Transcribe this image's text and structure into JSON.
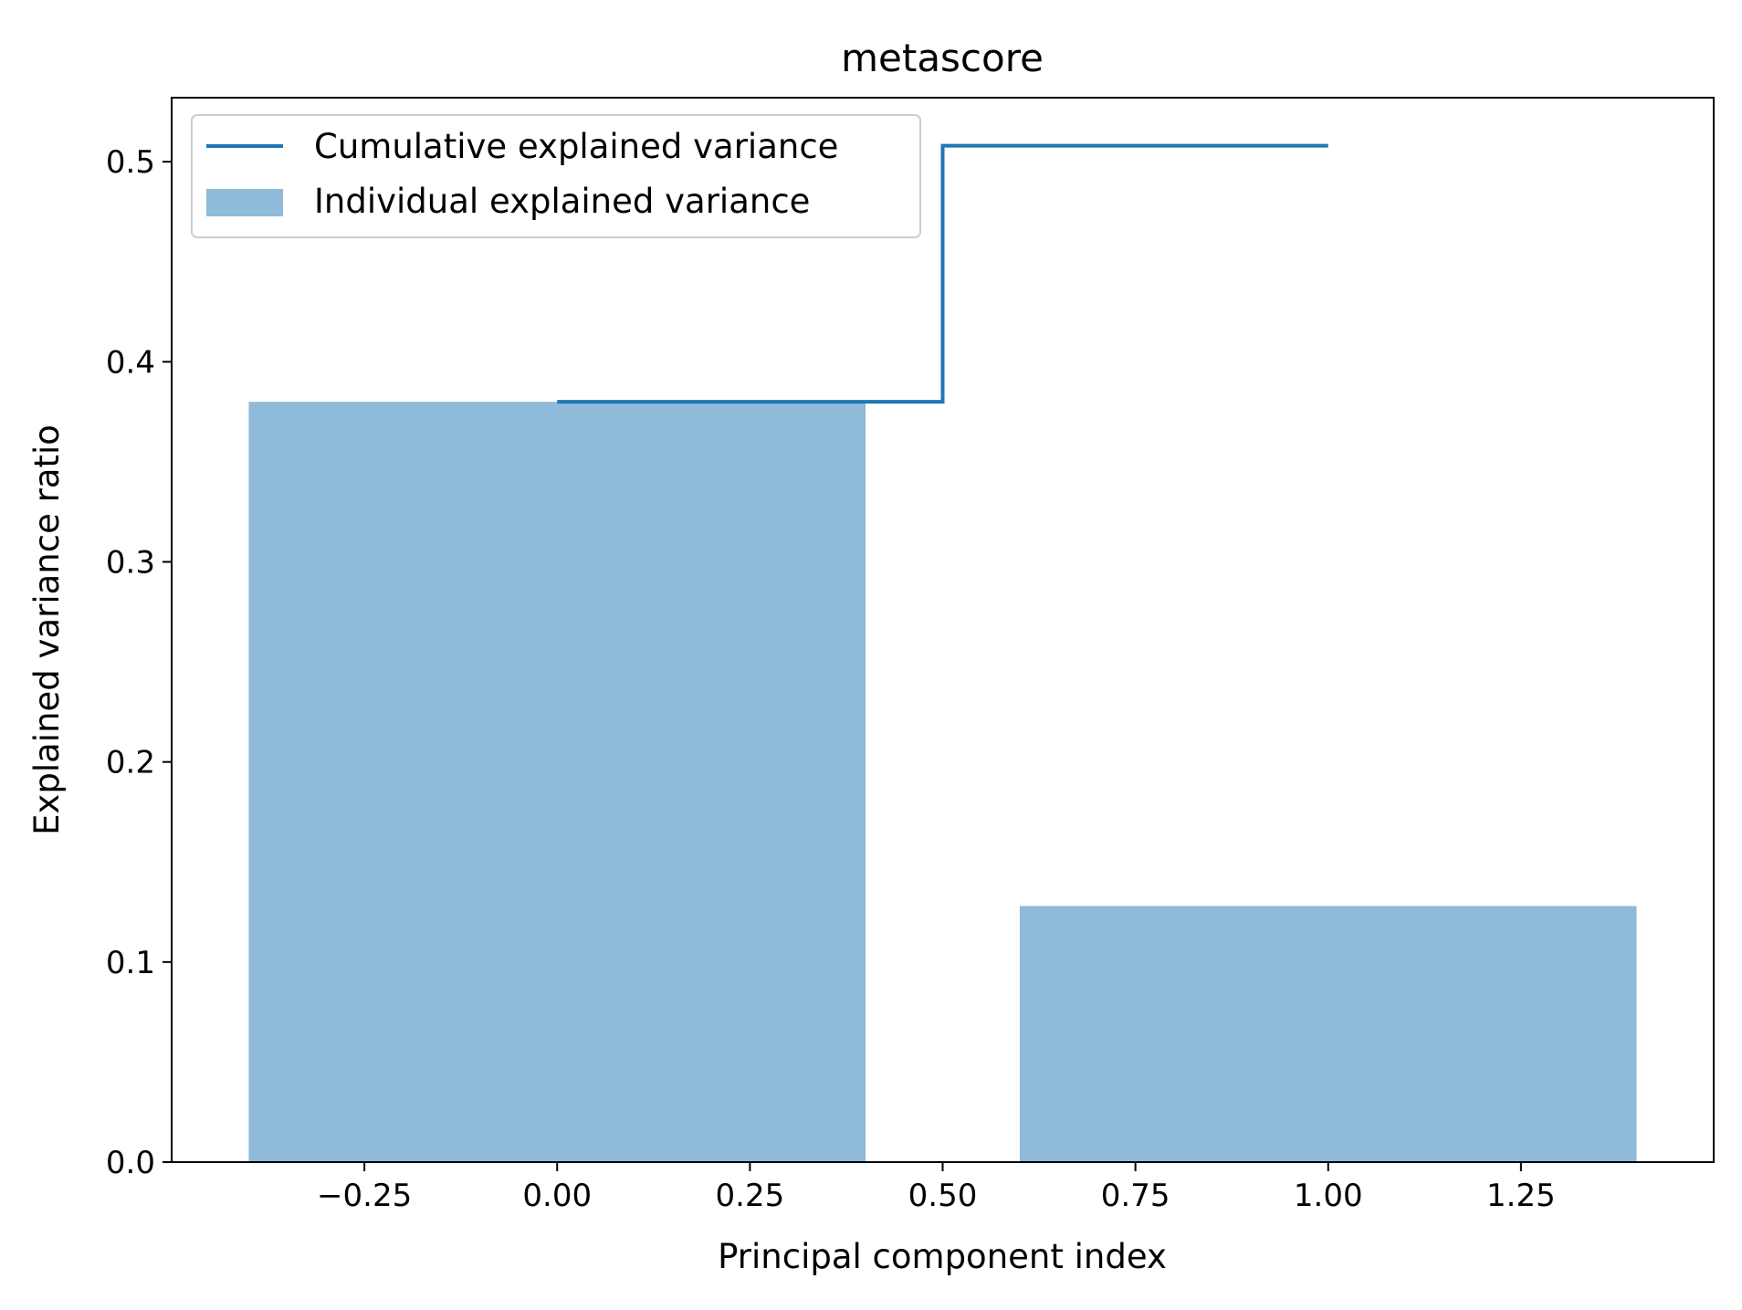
{
  "chart_data": {
    "type": "bar",
    "title": "metascore",
    "xlabel": "Principal component index",
    "ylabel": "Explained variance ratio",
    "xlim": [
      -0.5,
      1.5
    ],
    "ylim": [
      0.0,
      0.532
    ],
    "xticks": [
      -0.25,
      0.0,
      0.25,
      0.5,
      0.75,
      1.0,
      1.25
    ],
    "xtick_labels": [
      "−0.25",
      "0.00",
      "0.25",
      "0.50",
      "0.75",
      "1.00",
      "1.25"
    ],
    "yticks": [
      0.0,
      0.1,
      0.2,
      0.3,
      0.4,
      0.5
    ],
    "ytick_labels": [
      "0.0",
      "0.1",
      "0.2",
      "0.3",
      "0.4",
      "0.5"
    ],
    "grid": false,
    "legend_position": "top-left",
    "series": [
      {
        "name": "Individual explained variance",
        "type": "bar",
        "x": [
          0,
          1
        ],
        "values": [
          0.38,
          0.128
        ],
        "bar_width": 0.8,
        "color": "#8fbad9"
      },
      {
        "name": "Cumulative explained variance",
        "type": "step",
        "step_where": "mid",
        "x": [
          0,
          1
        ],
        "values": [
          0.38,
          0.508
        ],
        "color": "#1f77b4"
      }
    ]
  }
}
